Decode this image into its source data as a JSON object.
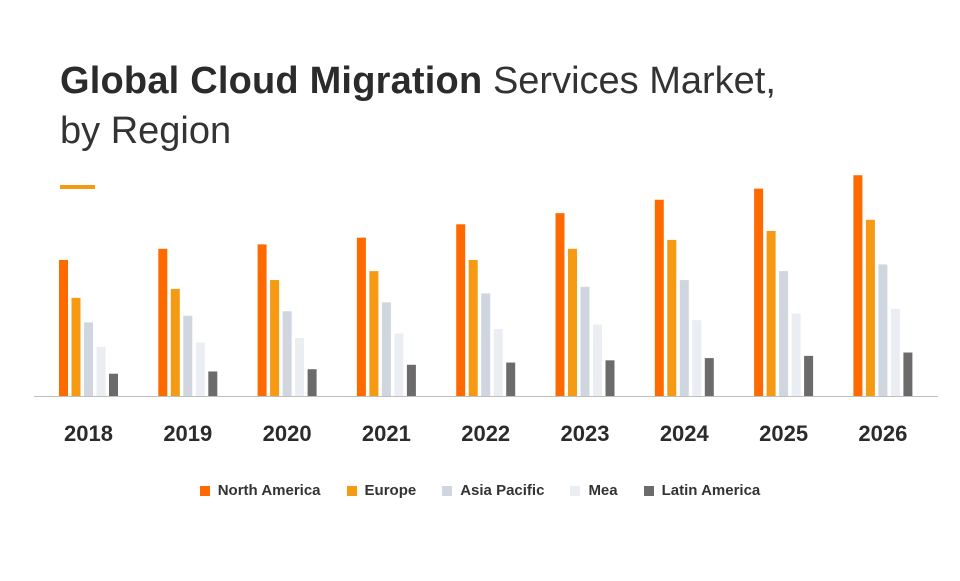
{
  "title": {
    "bold": "Global Cloud Migration",
    "light_line1": "Services Market,",
    "light_line2": "by Region"
  },
  "legend": [
    {
      "name": "North America",
      "color": "#ff6a00"
    },
    {
      "name": "Europe",
      "color": "#f59a12"
    },
    {
      "name": "Asia Pacific",
      "color": "#cfd6df"
    },
    {
      "name": "Mea",
      "color": "#eaedf1"
    },
    {
      "name": "Latin America",
      "color": "#6b6b6b"
    }
  ],
  "chart_data": {
    "type": "bar",
    "title": "Global Cloud Migration Services Market, by Region",
    "xlabel": "",
    "ylabel": "",
    "ylim": [
      0,
      100
    ],
    "grid": false,
    "legend_position": "bottom",
    "categories": [
      "2018",
      "2019",
      "2020",
      "2021",
      "2022",
      "2023",
      "2024",
      "2025",
      "2026"
    ],
    "series": [
      {
        "name": "North America",
        "color": "#ff6a00",
        "values": [
          61,
          66,
          68,
          71,
          77,
          82,
          88,
          93,
          99
        ]
      },
      {
        "name": "Europe",
        "color": "#f59a12",
        "values": [
          44,
          48,
          52,
          56,
          61,
          66,
          70,
          74,
          79
        ]
      },
      {
        "name": "Asia Pacific",
        "color": "#cfd6df",
        "values": [
          33,
          36,
          38,
          42,
          46,
          49,
          52,
          56,
          59
        ]
      },
      {
        "name": "Mea",
        "color": "#eaedf1",
        "values": [
          22,
          24,
          26,
          28,
          30,
          32,
          34,
          37,
          39
        ]
      },
      {
        "name": "Latin America",
        "color": "#6b6b6b",
        "values": [
          10,
          11,
          12,
          14,
          15,
          16,
          17,
          18,
          19.5
        ]
      }
    ]
  }
}
